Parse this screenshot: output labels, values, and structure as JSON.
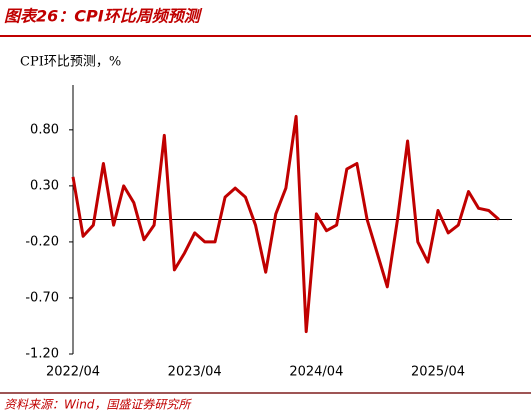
{
  "chart_data": {
    "type": "line",
    "title": "图表26：CPI环比周频预测",
    "ylabel": "CPI环比预测，%",
    "source": "资料来源：Wind，国盛证券研究所",
    "categories": [
      "2022/04",
      null,
      null,
      null,
      null,
      null,
      null,
      null,
      null,
      null,
      null,
      null,
      "2023/04",
      null,
      null,
      null,
      null,
      null,
      null,
      null,
      null,
      null,
      null,
      null,
      "2024/04",
      null,
      null,
      null,
      null,
      null,
      null,
      null,
      null,
      null,
      null,
      null,
      "2025/04",
      null,
      null,
      null,
      null,
      null,
      null
    ],
    "series": [
      {
        "name": "CPI环比预测",
        "color": "#c00000",
        "values": [
          0.38,
          -0.15,
          -0.05,
          0.5,
          -0.05,
          0.3,
          0.15,
          -0.18,
          -0.05,
          0.75,
          -0.45,
          -0.3,
          -0.12,
          -0.2,
          -0.2,
          0.2,
          0.28,
          0.2,
          -0.05,
          -0.47,
          0.05,
          0.28,
          0.92,
          -1.0,
          0.05,
          -0.1,
          -0.05,
          0.45,
          0.5,
          0.0,
          -0.3,
          -0.6,
          0.0,
          0.7,
          -0.2,
          -0.38,
          0.08,
          -0.12,
          -0.05,
          0.25,
          0.1,
          0.08,
          0.0
        ]
      }
    ],
    "ylim": [
      -1.2,
      1.2
    ],
    "yticks": [
      {
        "value": 0.8,
        "label": "0.80"
      },
      {
        "value": 0.3,
        "label": "0.30"
      },
      {
        "value": -0.2,
        "label": "-0.20"
      },
      {
        "value": -0.7,
        "label": "-0.70"
      },
      {
        "value": -1.2,
        "label": "-1.20"
      }
    ]
  }
}
